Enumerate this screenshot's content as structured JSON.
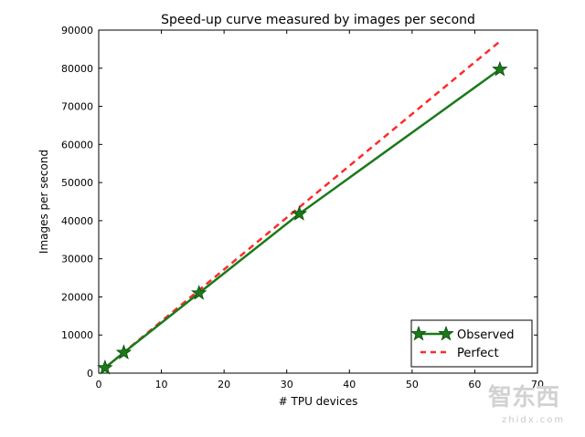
{
  "chart_data": {
    "type": "line",
    "title": "Speed-up curve measured by images per second",
    "xlabel": "# TPU devices",
    "ylabel": "Images per second",
    "xlim": [
      0,
      70
    ],
    "ylim": [
      0,
      90000
    ],
    "x_ticks": [
      0,
      10,
      20,
      30,
      40,
      50,
      60,
      70
    ],
    "y_ticks": [
      0,
      10000,
      20000,
      30000,
      40000,
      50000,
      60000,
      70000,
      80000,
      90000
    ],
    "x_tick_labels": [
      "0",
      "10",
      "20",
      "30",
      "40",
      "50",
      "60",
      "70"
    ],
    "y_tick_labels": [
      "0",
      "10000",
      "20000",
      "30000",
      "40000",
      "50000",
      "60000",
      "70000",
      "80000",
      "90000"
    ],
    "grid": false,
    "legend_position": "lower right",
    "series": [
      {
        "name": "Observed",
        "color": "#1a7a1a",
        "style": "solid",
        "marker": "star",
        "x": [
          1,
          4,
          16,
          32,
          64
        ],
        "y": [
          1400,
          5400,
          21000,
          41800,
          79700
        ]
      },
      {
        "name": "Perfect",
        "color": "#ff2a2a",
        "style": "dashed",
        "marker": "none",
        "x": [
          1,
          4,
          16,
          32,
          64
        ],
        "y": [
          1360,
          5440,
          21760,
          43520,
          87040
        ]
      }
    ]
  },
  "watermark": {
    "logo_text": "智东西",
    "url_text": "zhidx.com"
  }
}
